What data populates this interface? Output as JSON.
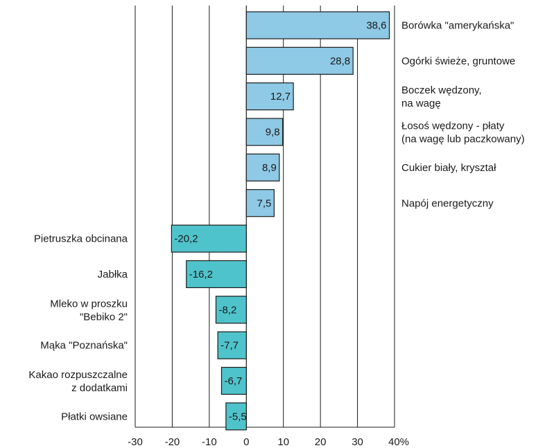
{
  "chart_data": {
    "type": "bar",
    "orientation": "horizontal",
    "categories": [
      [
        "Borówka \"amerykańska\""
      ],
      [
        "Ogórki świeże, gruntowe"
      ],
      [
        "Boczek wędzony,",
        "na wagę"
      ],
      [
        "Łosoś wędzony - płaty",
        "(na wagę lub paczkowany)"
      ],
      [
        "Cukier biały, kryształ"
      ],
      [
        "Napój energetyczny"
      ],
      [
        "Pietruszka obcinana"
      ],
      [
        "Jabłka"
      ],
      [
        "Mleko w proszku",
        "\"Bebiko 2\""
      ],
      [
        "Mąka \"Poznańska\""
      ],
      [
        "Kakao rozpuszczalne",
        "z dodatkami"
      ],
      [
        "Płatki owsiane"
      ]
    ],
    "values": [
      38.6,
      28.8,
      12.7,
      9.8,
      8.9,
      7.5,
      -20.2,
      -16.2,
      -8.2,
      -7.7,
      -6.7,
      -5.5
    ],
    "data_labels": [
      "38,6",
      "28,8",
      "12,7",
      "9,8",
      "8,9",
      "7,5",
      "-20,2",
      "-16,2",
      "-8,2",
      "-7,7",
      "-6,7",
      "-5,5"
    ],
    "xlim": [
      -30,
      40
    ],
    "x_ticks": [
      -30,
      -20,
      -10,
      0,
      10,
      20,
      30,
      40
    ],
    "x_tick_labels": [
      "-30",
      "-20",
      "-10",
      "0",
      "10",
      "20",
      "30",
      "40%"
    ],
    "grid": "vertical",
    "colors": {
      "positive": "#8ec9e6",
      "negative": "#4fc3cb",
      "edge": "#1a1a1a"
    }
  }
}
